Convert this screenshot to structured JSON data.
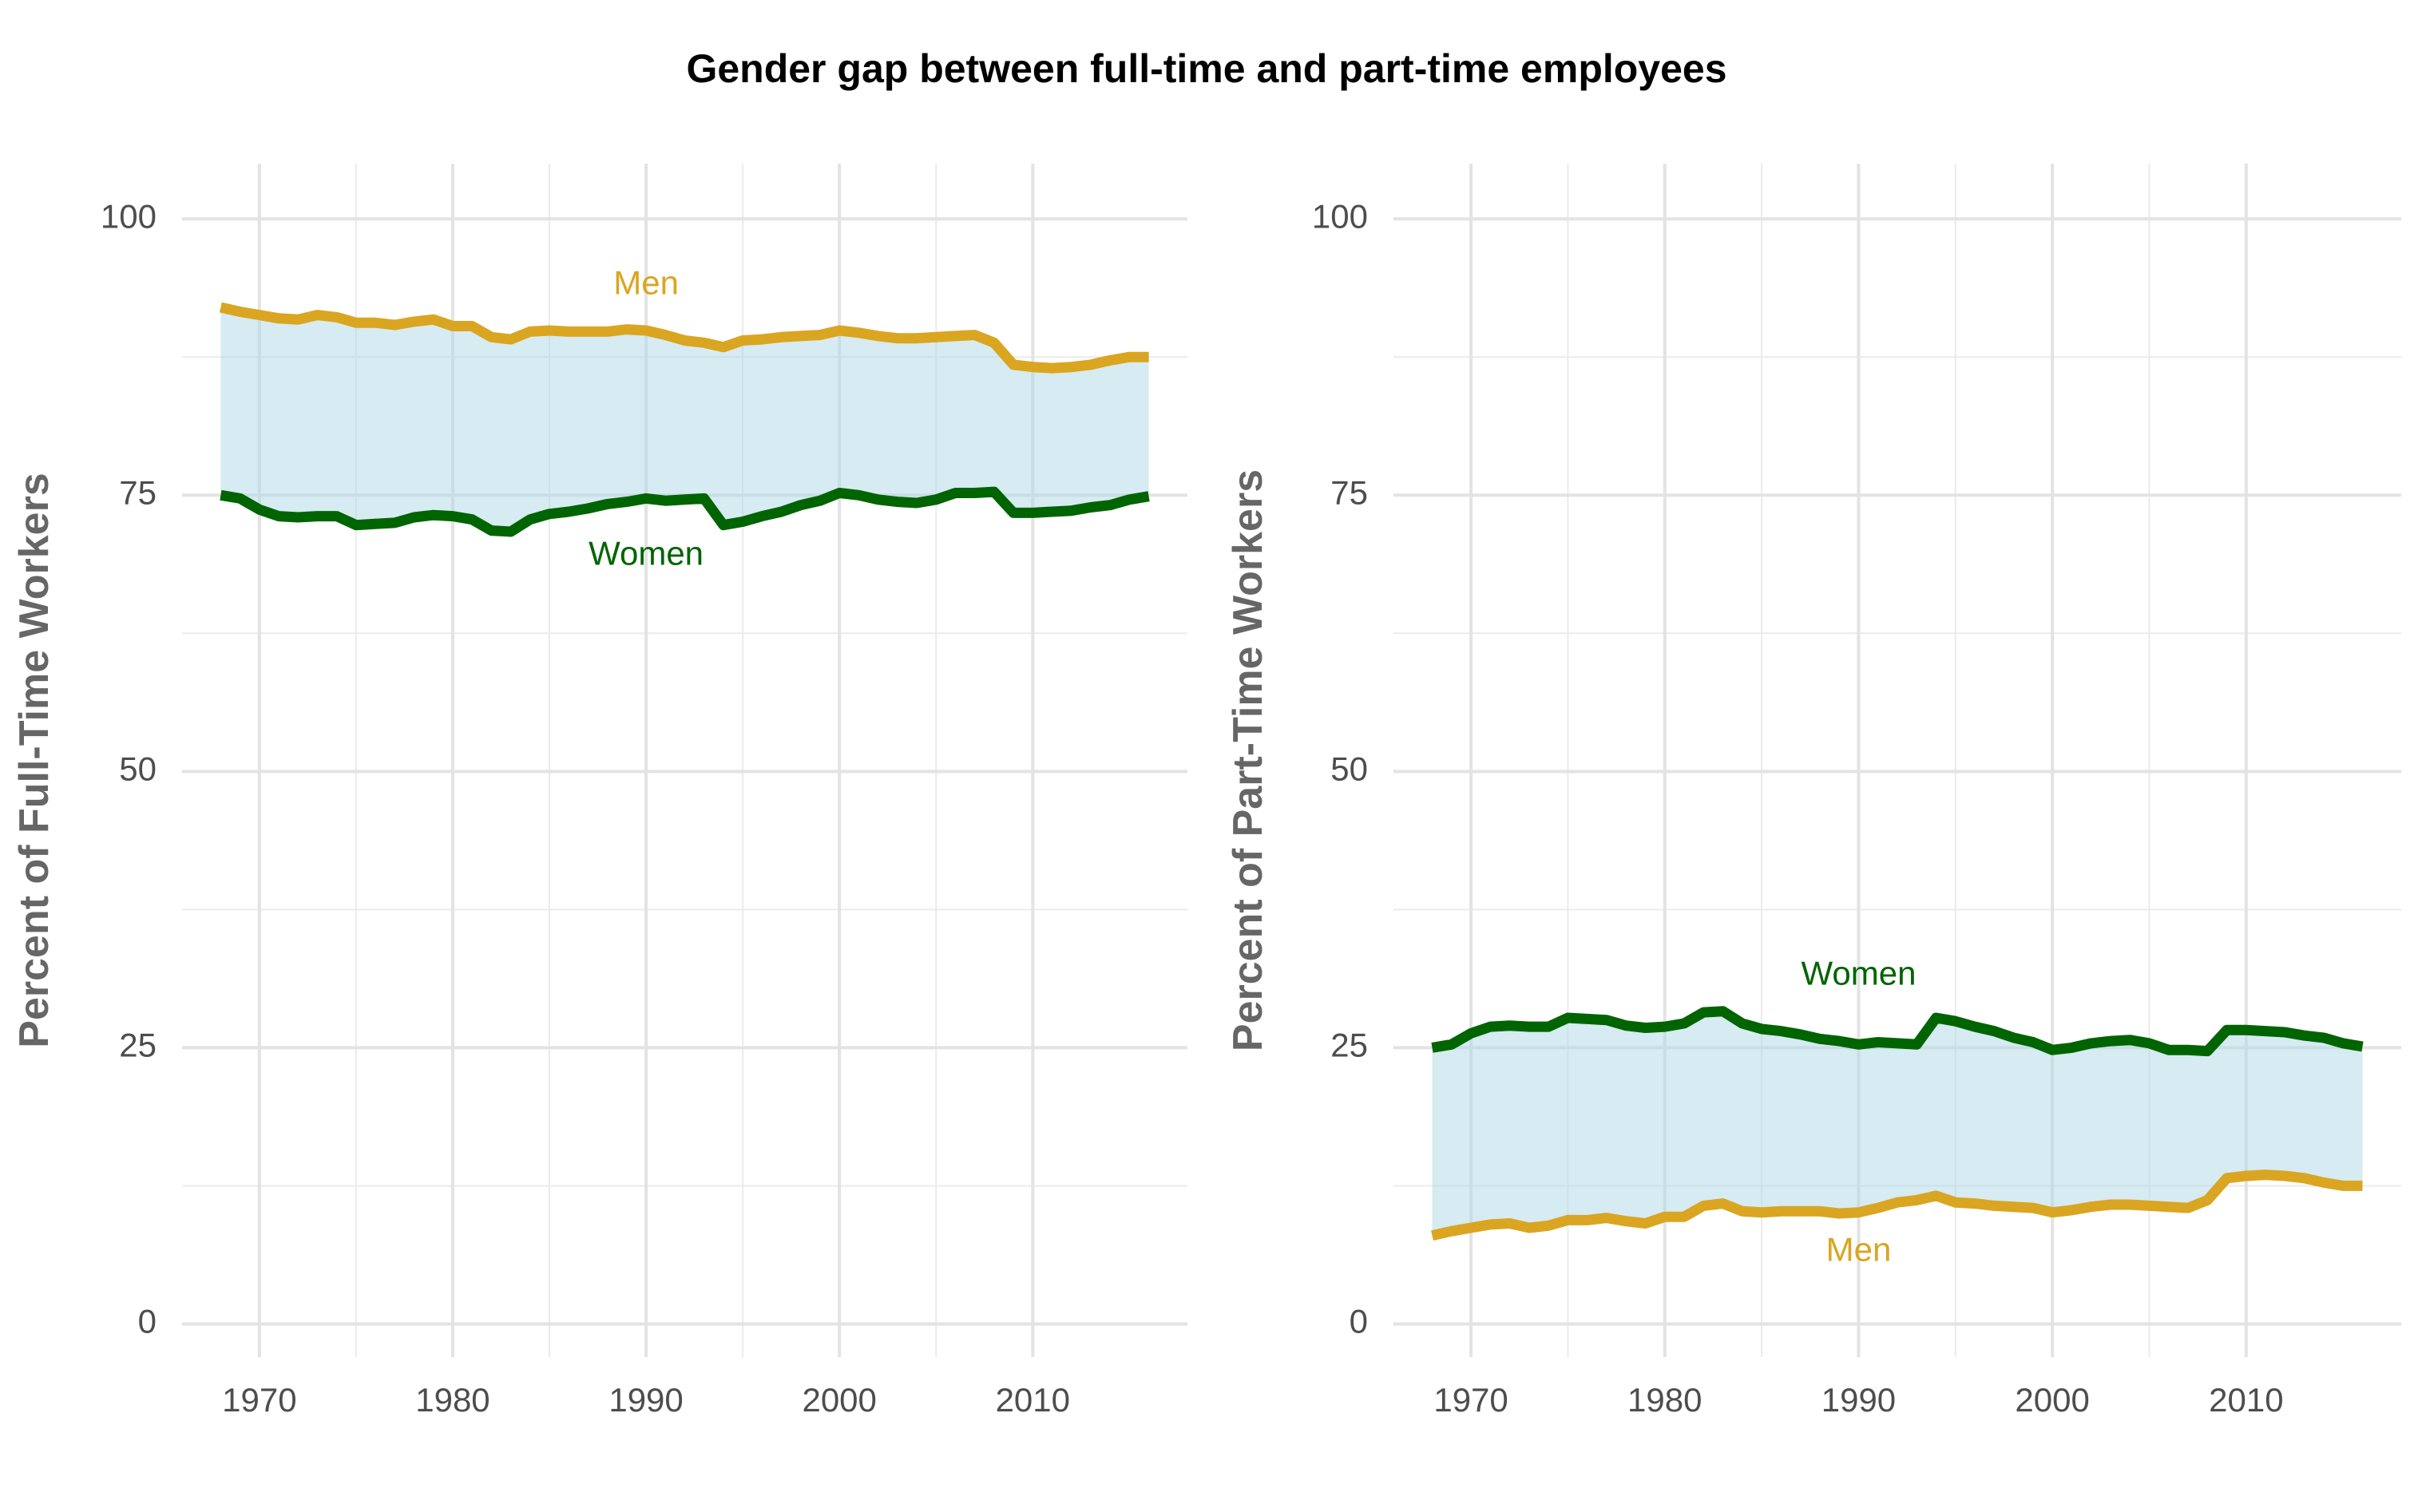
{
  "chart_data": [
    {
      "type": "area",
      "title": "Gender gap between full-time and part-time employees",
      "xlabel": "",
      "ylabel": "Percent of Full-Time Workers",
      "xlim": [
        1966,
        2018
      ],
      "ylim": [
        -3,
        105
      ],
      "x_ticks": [
        1970,
        1980,
        1990,
        2000,
        2010
      ],
      "y_ticks": [
        0,
        25,
        50,
        75,
        100
      ],
      "grid": true,
      "x": [
        1968,
        1969,
        1970,
        1971,
        1972,
        1973,
        1974,
        1975,
        1976,
        1977,
        1978,
        1979,
        1980,
        1981,
        1982,
        1983,
        1984,
        1985,
        1986,
        1987,
        1988,
        1989,
        1990,
        1991,
        1992,
        1993,
        1994,
        1995,
        1996,
        1997,
        1998,
        1999,
        2000,
        2001,
        2002,
        2003,
        2004,
        2005,
        2006,
        2007,
        2008,
        2009,
        2010,
        2011,
        2012,
        2013,
        2014,
        2015,
        2016
      ],
      "series": [
        {
          "name": "Men",
          "color": "#DAA520",
          "values": [
            92.0,
            91.6,
            91.3,
            91.0,
            90.9,
            91.3,
            91.1,
            90.6,
            90.6,
            90.4,
            90.7,
            90.9,
            90.3,
            90.3,
            89.3,
            89.1,
            89.8,
            89.9,
            89.8,
            89.8,
            89.8,
            90.0,
            89.9,
            89.5,
            89.0,
            88.8,
            88.4,
            89.0,
            89.1,
            89.3,
            89.4,
            89.5,
            89.9,
            89.7,
            89.4,
            89.2,
            89.2,
            89.3,
            89.4,
            89.5,
            88.8,
            86.8,
            86.6,
            86.5,
            86.6,
            86.8,
            87.2,
            87.5,
            87.5
          ],
          "label_x": 1990,
          "label_y": 94
        },
        {
          "name": "Women",
          "color": "#006400",
          "values": [
            75.0,
            74.7,
            73.7,
            73.1,
            73.0,
            73.1,
            73.1,
            72.3,
            72.4,
            72.5,
            73.0,
            73.2,
            73.1,
            72.8,
            71.8,
            71.7,
            72.8,
            73.3,
            73.5,
            73.8,
            74.2,
            74.4,
            74.7,
            74.5,
            74.6,
            74.7,
            72.3,
            72.6,
            73.1,
            73.5,
            74.1,
            74.5,
            75.2,
            75.0,
            74.6,
            74.4,
            74.3,
            74.6,
            75.2,
            75.2,
            75.3,
            73.4,
            73.4,
            73.5,
            73.6,
            73.9,
            74.1,
            74.6,
            74.9
          ],
          "label_x": 1990,
          "label_y": 69.5
        }
      ],
      "fill_between": {
        "color": "#ADD8E6",
        "opacity": 0.5
      }
    },
    {
      "type": "area",
      "title": "",
      "xlabel": "",
      "ylabel": "Percent of Part-Time Workers",
      "xlim": [
        1966,
        2018
      ],
      "ylim": [
        -3,
        105
      ],
      "x_ticks": [
        1970,
        1980,
        1990,
        2000,
        2010
      ],
      "y_ticks": [
        0,
        25,
        50,
        75,
        100
      ],
      "grid": true,
      "x": [
        1968,
        1969,
        1970,
        1971,
        1972,
        1973,
        1974,
        1975,
        1976,
        1977,
        1978,
        1979,
        1980,
        1981,
        1982,
        1983,
        1984,
        1985,
        1986,
        1987,
        1988,
        1989,
        1990,
        1991,
        1992,
        1993,
        1994,
        1995,
        1996,
        1997,
        1998,
        1999,
        2000,
        2001,
        2002,
        2003,
        2004,
        2005,
        2006,
        2007,
        2008,
        2009,
        2010,
        2011,
        2012,
        2013,
        2014,
        2015,
        2016
      ],
      "series": [
        {
          "name": "Women",
          "color": "#006400",
          "values": [
            25.0,
            25.3,
            26.3,
            26.9,
            27.0,
            26.9,
            26.9,
            27.7,
            27.6,
            27.5,
            27.0,
            26.8,
            26.9,
            27.2,
            28.2,
            28.3,
            27.2,
            26.7,
            26.5,
            26.2,
            25.8,
            25.6,
            25.3,
            25.5,
            25.4,
            25.3,
            27.7,
            27.4,
            26.9,
            26.5,
            25.9,
            25.5,
            24.8,
            25.0,
            25.4,
            25.6,
            25.7,
            25.4,
            24.8,
            24.8,
            24.7,
            26.6,
            26.6,
            26.5,
            26.4,
            26.1,
            25.9,
            25.4,
            25.1
          ],
          "label_x": 1990,
          "label_y": 31.5
        },
        {
          "name": "Men",
          "color": "#DAA520",
          "values": [
            8.0,
            8.4,
            8.7,
            9.0,
            9.1,
            8.7,
            8.9,
            9.4,
            9.4,
            9.6,
            9.3,
            9.1,
            9.7,
            9.7,
            10.7,
            10.9,
            10.2,
            10.1,
            10.2,
            10.2,
            10.2,
            10.0,
            10.1,
            10.5,
            11.0,
            11.2,
            11.6,
            11.0,
            10.9,
            10.7,
            10.6,
            10.5,
            10.1,
            10.3,
            10.6,
            10.8,
            10.8,
            10.7,
            10.6,
            10.5,
            11.2,
            13.2,
            13.4,
            13.5,
            13.4,
            13.2,
            12.8,
            12.5,
            12.5
          ],
          "label_x": 1990,
          "label_y": 6.5
        }
      ],
      "fill_between": {
        "color": "#ADD8E6",
        "opacity": 0.5
      }
    }
  ]
}
